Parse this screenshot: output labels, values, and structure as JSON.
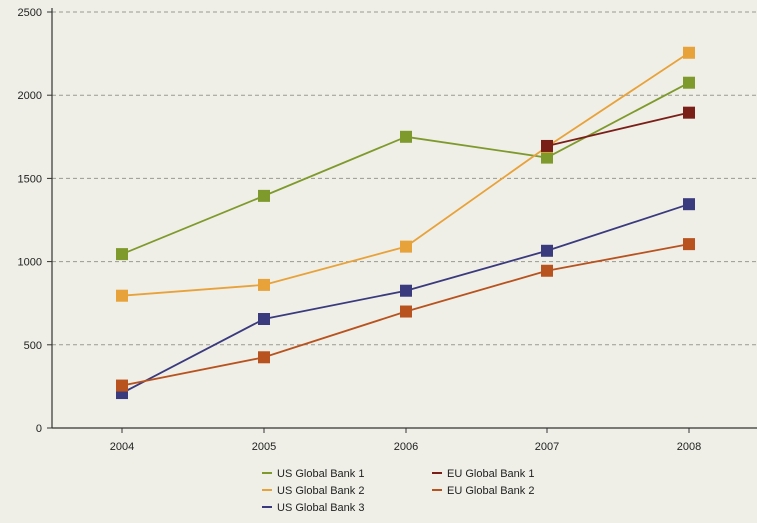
{
  "chart_data": {
    "type": "line",
    "title": "",
    "xlabel": "",
    "ylabel": "",
    "categories": [
      "2004",
      "2005",
      "2006",
      "2007",
      "2008"
    ],
    "ylim": [
      0,
      2500
    ],
    "yticks": [
      0,
      500,
      1000,
      1500,
      2000,
      2500
    ],
    "grid": true,
    "legend_position": "bottom",
    "series": [
      {
        "name": "US Global Bank 1",
        "color": "#7f9a2c",
        "values": [
          1045,
          1395,
          1750,
          1625,
          2075
        ]
      },
      {
        "name": "US Global Bank 2",
        "color": "#e8a23a",
        "values": [
          795,
          860,
          1090,
          1690,
          2255
        ]
      },
      {
        "name": "US Global Bank 3",
        "color": "#3a3a7e",
        "values": [
          210,
          655,
          825,
          1065,
          1345
        ]
      },
      {
        "name": "EU Global Bank 1",
        "color": "#7a1f18",
        "values": [
          null,
          null,
          null,
          1695,
          1895
        ]
      },
      {
        "name": "EU Global Bank 2",
        "color": "#b8521e",
        "values": [
          255,
          425,
          700,
          945,
          1105
        ]
      }
    ],
    "legend_order": [
      0,
      3,
      1,
      4,
      2
    ]
  }
}
